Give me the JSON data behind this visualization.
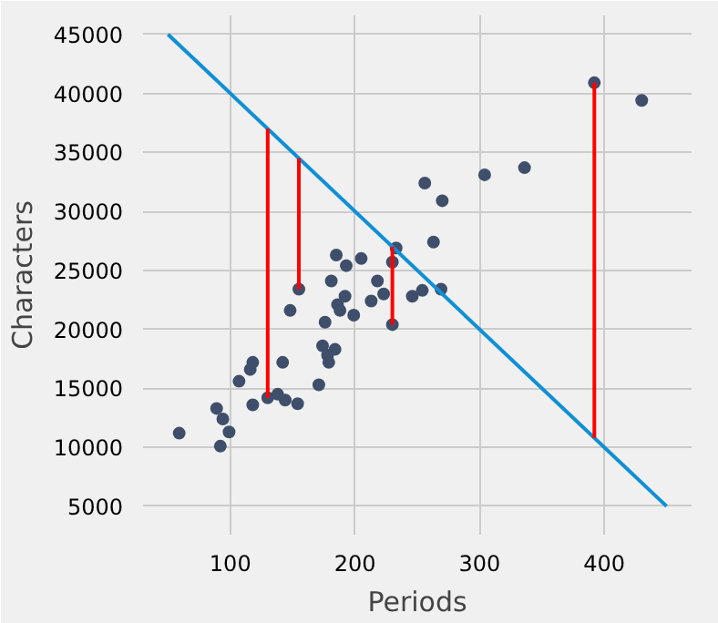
{
  "chart_data": {
    "type": "scatter",
    "xlabel": "Periods",
    "ylabel": "Characters",
    "xlim": [
      30,
      470
    ],
    "ylim": [
      2600,
      46600
    ],
    "xticks": [
      100,
      200,
      300,
      400
    ],
    "yticks": [
      5000,
      10000,
      15000,
      20000,
      25000,
      30000,
      35000,
      40000,
      45000
    ],
    "grid": true,
    "line_style": "solid",
    "series": [
      {
        "marker": "circle",
        "color": "#3f4f6b",
        "x": [
          59,
          89,
          94,
          92,
          99,
          107,
          116,
          118,
          118,
          130,
          138,
          142,
          144,
          154,
          148,
          155,
          171,
          174,
          176,
          178,
          179,
          184,
          181,
          186,
          188,
          192,
          199,
          213,
          218,
          223,
          230,
          246,
          254,
          269,
          185,
          205,
          193,
          233,
          230,
          256,
          270,
          263,
          304,
          336,
          392,
          430
        ],
        "values": [
          11200,
          13300,
          12400,
          10100,
          11300,
          15600,
          16600,
          17200,
          13600,
          14200,
          14500,
          17200,
          14000,
          13700,
          21600,
          23400,
          15300,
          18600,
          20600,
          17800,
          17200,
          18300,
          24100,
          22100,
          21600,
          22800,
          21200,
          22400,
          24100,
          23000,
          20400,
          22800,
          23300,
          23400,
          26300,
          26000,
          25400,
          26900,
          25700,
          32400,
          30900,
          27400,
          33100,
          33700,
          40900,
          39400
        ]
      },
      {
        "type": "line",
        "color": "#0f8fd6",
        "x": [
          50,
          450
        ],
        "values": [
          45000,
          5000
        ]
      },
      {
        "type": "line",
        "color": "#ff0000",
        "x": [
          130,
          130
        ],
        "values": [
          14200,
          37000
        ]
      },
      {
        "type": "line",
        "color": "#ff0000",
        "x": [
          155,
          155
        ],
        "values": [
          23400,
          34500
        ]
      },
      {
        "type": "line",
        "color": "#ff0000",
        "x": [
          230,
          230
        ],
        "values": [
          20400,
          27000
        ]
      },
      {
        "type": "line",
        "color": "#ff0000",
        "x": [
          392,
          392
        ],
        "values": [
          40900,
          10800
        ]
      }
    ]
  }
}
